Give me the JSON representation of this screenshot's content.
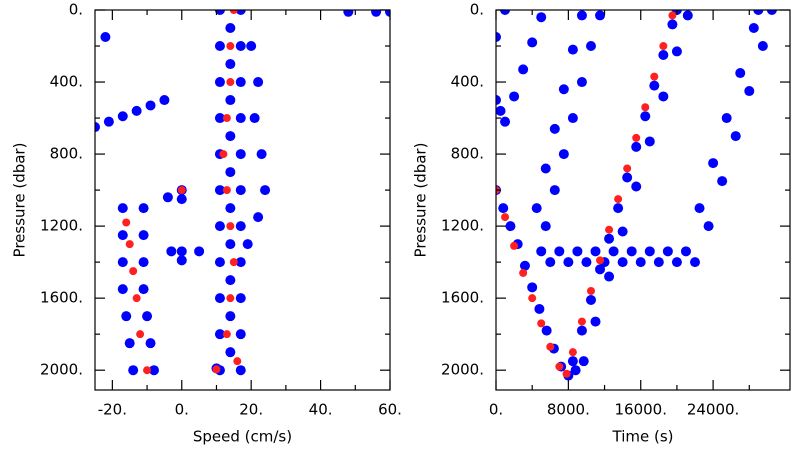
{
  "chart_data": [
    {
      "type": "scatter",
      "xlabel": "Speed (cm/s)",
      "ylabel": "Pressure (dbar)",
      "xlim": [
        -25,
        60
      ],
      "ylim": [
        0,
        2110
      ],
      "y_inverted": true,
      "tick_direction": "in",
      "xticks": [
        {
          "value": -20,
          "label": "-20."
        },
        {
          "value": 0,
          "label": "0."
        },
        {
          "value": 20,
          "label": "20."
        },
        {
          "value": 40,
          "label": "40."
        },
        {
          "value": 60,
          "label": "60."
        }
      ],
      "xminorticks": [
        -10,
        10,
        30,
        50
      ],
      "yticks": [
        {
          "value": 0,
          "label": "0."
        },
        {
          "value": 400,
          "label": "400."
        },
        {
          "value": 800,
          "label": "800."
        },
        {
          "value": 1200,
          "label": "1200."
        },
        {
          "value": 1600,
          "label": "1600."
        },
        {
          "value": 2000,
          "label": "2000."
        }
      ],
      "yminorticks": [
        200,
        600,
        1000,
        1400,
        1800
      ],
      "series": [
        {
          "color": "#0000ff",
          "x": [
            11,
            17,
            11,
            17,
            11,
            17,
            11,
            17,
            11,
            17,
            11,
            17,
            11,
            17,
            11,
            17,
            11,
            17,
            11,
            17,
            11,
            17,
            14,
            14,
            14,
            14,
            14,
            14,
            14,
            14,
            14,
            14,
            20,
            22,
            21,
            23,
            24,
            22,
            19,
            -17,
            -11,
            -17,
            -11,
            -17,
            -11,
            -17,
            -11,
            -16,
            -10,
            -15,
            -9,
            -14,
            -8,
            -25,
            -21,
            -17,
            -13,
            -9,
            -5,
            -22,
            0,
            0,
            -3,
            0,
            5,
            0,
            10,
            -4,
            48,
            56,
            60
          ],
          "values": [
            0,
            0,
            200,
            200,
            400,
            400,
            600,
            600,
            800,
            800,
            1000,
            1000,
            1200,
            1200,
            1400,
            1400,
            1600,
            1600,
            1800,
            1800,
            2000,
            2000,
            100,
            300,
            500,
            700,
            900,
            1100,
            1300,
            1500,
            1700,
            1900,
            200,
            400,
            600,
            800,
            1000,
            1150,
            1300,
            1100,
            1100,
            1250,
            1250,
            1400,
            1400,
            1550,
            1550,
            1700,
            1700,
            1850,
            1850,
            2000,
            2000,
            650,
            620,
            590,
            560,
            530,
            500,
            150,
            1000,
            1050,
            1340,
            1340,
            1340,
            1390,
            1990,
            1040,
            10,
            10,
            10
          ]
        },
        {
          "color": "#ff2020",
          "x": [
            15,
            14,
            14,
            13,
            12,
            13,
            14,
            15,
            14,
            13,
            16,
            -16,
            -15,
            -14,
            -13,
            -12,
            -10,
            0,
            10
          ],
          "values": [
            0,
            200,
            400,
            600,
            800,
            1000,
            1200,
            1400,
            1600,
            1800,
            1950,
            1180,
            1300,
            1450,
            1600,
            1800,
            2000,
            1000,
            1995
          ]
        }
      ]
    },
    {
      "type": "scatter",
      "xlabel": "Time (s)",
      "ylabel": "Pressure (dbar)",
      "xlim": [
        0,
        32500
      ],
      "ylim": [
        0,
        2110
      ],
      "y_inverted": true,
      "tick_direction": "in",
      "xticks": [
        {
          "value": 0,
          "label": "0."
        },
        {
          "value": 8000,
          "label": "8000."
        },
        {
          "value": 16000,
          "label": "16000."
        },
        {
          "value": 24000,
          "label": "24000."
        }
      ],
      "xminorticks": [
        4000,
        12000,
        20000,
        28000
      ],
      "yticks": [
        {
          "value": 0,
          "label": "0."
        },
        {
          "value": 400,
          "label": "400."
        },
        {
          "value": 800,
          "label": "800."
        },
        {
          "value": 1200,
          "label": "1200."
        },
        {
          "value": 1600,
          "label": "1600."
        },
        {
          "value": 2000,
          "label": "2000."
        }
      ],
      "yminorticks": [
        200,
        600,
        1000,
        1400,
        1800
      ],
      "series": [
        {
          "color": "#0000ff",
          "x": [
            0,
            800,
            1600,
            2400,
            3200,
            4000,
            4800,
            5600,
            6400,
            7200,
            8000,
            8800,
            8500,
            9500,
            10500,
            11500,
            12500,
            13500,
            14500,
            15500,
            16500,
            17500,
            18500,
            19500,
            20000,
            9700,
            11000,
            12500,
            14000,
            15500,
            17000,
            18500,
            20000,
            21200,
            21000,
            22500,
            24000,
            25500,
            27000,
            28500,
            29000,
            30500,
            29500,
            28000,
            26500,
            25000,
            23500,
            22000,
            5000,
            7000,
            9000,
            11000,
            13000,
            15000,
            17000,
            19000,
            6000,
            8000,
            10000,
            12000,
            14000,
            16000,
            18000,
            20000,
            5500,
            6500,
            7500,
            8500,
            9500,
            10500,
            11500,
            4500,
            5500,
            6500,
            7500,
            8500,
            9500,
            1000,
            2000,
            3000,
            4000,
            5000,
            0,
            500,
            0,
            1000
          ],
          "values": [
            1000,
            1100,
            1200,
            1300,
            1420,
            1540,
            1660,
            1780,
            1880,
            1980,
            2030,
            2000,
            1950,
            1780,
            1610,
            1440,
            1270,
            1100,
            930,
            760,
            590,
            420,
            250,
            80,
            0,
            1950,
            1730,
            1480,
            1230,
            980,
            730,
            480,
            230,
            30,
            1340,
            1100,
            850,
            600,
            350,
            100,
            0,
            0,
            200,
            450,
            700,
            950,
            1200,
            1400,
            1340,
            1340,
            1340,
            1340,
            1340,
            1340,
            1340,
            1340,
            1400,
            1400,
            1400,
            1400,
            1400,
            1400,
            1400,
            1400,
            1200,
            1000,
            800,
            600,
            400,
            200,
            30,
            1100,
            880,
            660,
            440,
            220,
            30,
            620,
            480,
            330,
            180,
            40,
            500,
            560,
            150,
            0
          ]
        },
        {
          "color": "#ff2020",
          "x": [
            0,
            1000,
            2000,
            3000,
            4000,
            5000,
            6000,
            7000,
            7800,
            8500,
            9500,
            10500,
            11500,
            12500,
            13500,
            14500,
            15500,
            16500,
            17500,
            18500,
            19500
          ],
          "values": [
            1000,
            1150,
            1310,
            1460,
            1600,
            1740,
            1870,
            1980,
            2020,
            1900,
            1730,
            1560,
            1390,
            1220,
            1050,
            880,
            710,
            540,
            370,
            200,
            30
          ]
        }
      ]
    }
  ]
}
